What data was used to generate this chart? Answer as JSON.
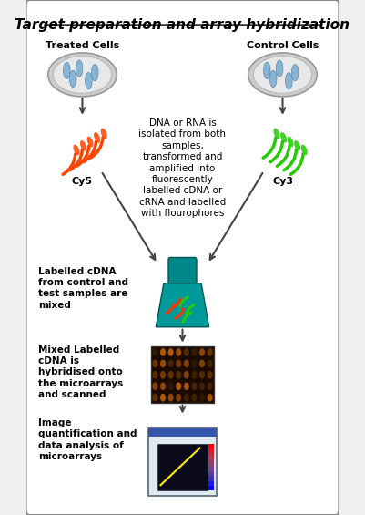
{
  "title": "Target preparation and array hybridization",
  "bg_color": "#f0f0f0",
  "border_color": "#888888",
  "title_fontsize": 11,
  "label_fontsize": 8,
  "text_fontsize": 7.5,
  "treated_cells_label": "Treated Cells",
  "control_cells_label": "Control Cells",
  "cy5_label": "Cy5",
  "cy3_label": "Cy3",
  "middle_text": "DNA or RNA is\nisolated from both\nsamples,\ntransformed and\namplified into\nfluorescently\nlabelled cDNA or\ncRNA and labelled\nwith flourophores",
  "step1_text": "Labelled cDNA\nfrom control and\ntest samples are\nmixed",
  "step2_text": "Mixed Labelled\ncDNA is\nhybridised onto\nthe microarrays\nand scanned",
  "step3_text": "Image\nquantification and\ndata analysis of\nmicroarrays"
}
